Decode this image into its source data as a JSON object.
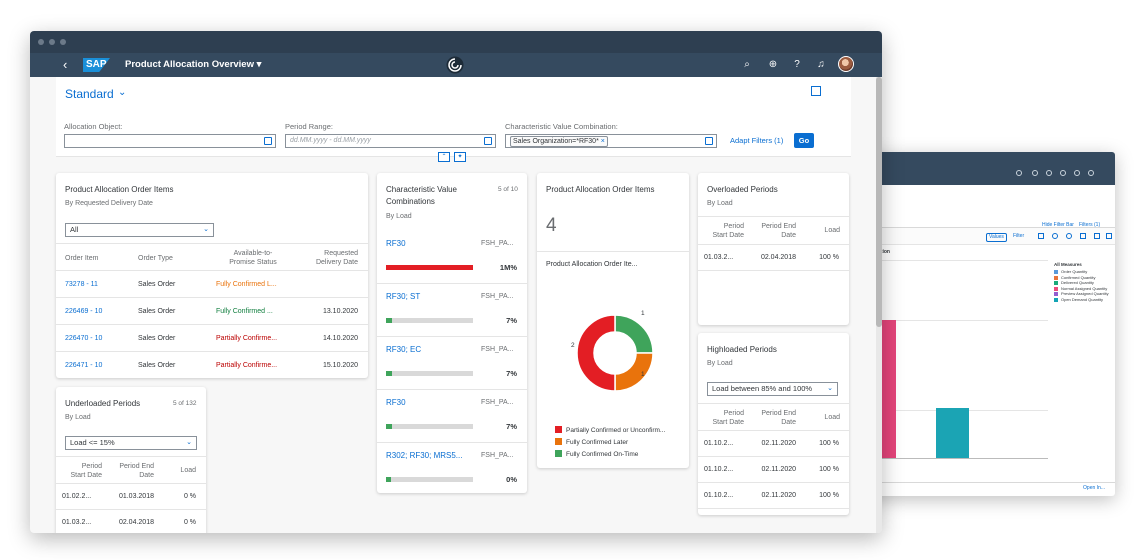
{
  "colors": {
    "shell": "#354a5f",
    "accent": "#0a6ed1",
    "red": "#e31e24",
    "orange": "#e9730c",
    "green": "#3fa45b",
    "pink": "#e5457b",
    "teal": "#1ba4b4"
  },
  "shell": {
    "title": "Product Allocation Overview ▾",
    "logo": "SAP",
    "icons": [
      "back-icon",
      "search-icon",
      "settings-icon",
      "help-icon",
      "bell-icon",
      "user-avatar"
    ]
  },
  "filterbar": {
    "variant": "Standard",
    "allocation_object_label": "Allocation Object:",
    "allocation_object_value": "",
    "period_range_label": "Period Range:",
    "period_range_placeholder": "dd.MM.yyyy - dd.MM.yyyy",
    "char_value_label": "Characteristic Value Combination:",
    "char_value_token": "Sales Organization=*RF30*",
    "token_remove": "×",
    "adapt_filters": "Adapt Filters (1)",
    "go": "Go"
  },
  "order_items": {
    "title": "Product Allocation Order Items",
    "subtitle": "By Requested Delivery Date",
    "select": "All",
    "headers": [
      "Order Item",
      "Order Type",
      "Available-to-\nPromise Status",
      "Requested\nDelivery Date"
    ],
    "rows": [
      {
        "item": "73278 - 11",
        "type": "Sales Order",
        "status": "Fully Confirmed L...",
        "date": ""
      },
      {
        "item": "226469 - 10",
        "type": "Sales Order",
        "status": "Fully Confirmed ...",
        "date": "13.10.2020"
      },
      {
        "item": "226470 - 10",
        "type": "Sales Order",
        "status": "Partially Confirme...",
        "date": "14.10.2020"
      },
      {
        "item": "226471 - 10",
        "type": "Sales Order",
        "status": "Partially Confirme...",
        "date": "15.10.2020"
      }
    ]
  },
  "underloaded": {
    "title": "Underloaded Periods",
    "count": "5 of 132",
    "subtitle": "By Load",
    "select": "Load <= 15%",
    "headers": [
      "Period\nStart Date",
      "Period End\nDate",
      "Load"
    ],
    "rows": [
      {
        "start": "01.02.2...",
        "end": "01.03.2018",
        "load": "0 %"
      },
      {
        "start": "01.03.2...",
        "end": "02.04.2018",
        "load": "0 %"
      }
    ]
  },
  "char_values": {
    "title": "Characteristic Value Combinations",
    "count": "5 of 10",
    "subtitle": "By Load",
    "rows": [
      {
        "name": "RF30",
        "code": "FSH_PA...",
        "pct_label": "1M%",
        "fill": 1.0,
        "color": "red"
      },
      {
        "name": "RF30; ST",
        "code": "FSH_PA...",
        "pct_label": "7%",
        "fill": 0.07,
        "color": "green"
      },
      {
        "name": "RF30; EC",
        "code": "FSH_PA...",
        "pct_label": "7%",
        "fill": 0.07,
        "color": "green"
      },
      {
        "name": "RF30",
        "code": "FSH_PA...",
        "pct_label": "7%",
        "fill": 0.07,
        "color": "green"
      },
      {
        "name": "R302; RF30; MRS5...",
        "code": "FSH_PA...",
        "pct_label": "0%",
        "fill": 0.0,
        "color": "green"
      }
    ]
  },
  "order_items_kpi": {
    "title": "Product Allocation Order Items",
    "value": "4",
    "chart_title": "Product Allocation Order Ite...",
    "chart_data": {
      "type": "pie",
      "categories": [
        "Partially Confirmed or Unconfirm...",
        "Fully Confirmed Later",
        "Fully Confirmed On-Time"
      ],
      "values": [
        2,
        1,
        1
      ],
      "colors": [
        "#e31e24",
        "#e9730c",
        "#3fa45b"
      ]
    },
    "legend": [
      "Partially Confirmed or Unconfirm...",
      "Fully Confirmed Later",
      "Fully Confirmed On-Time"
    ],
    "labels": [
      "2",
      "1",
      "1"
    ]
  },
  "overloaded": {
    "title": "Overloaded Periods",
    "subtitle": "By Load",
    "headers": [
      "Period\nStart Date",
      "Period End\nDate",
      "Load"
    ],
    "rows": [
      {
        "start": "01.03.2...",
        "end": "02.04.2018",
        "load": "100 %"
      }
    ]
  },
  "highloaded": {
    "title": "Highloaded Periods",
    "subtitle": "By Load",
    "select": "Load between 85% and 100%",
    "headers": [
      "Period\nStart Date",
      "Period End\nDate",
      "Load"
    ],
    "rows": [
      {
        "start": "01.10.2...",
        "end": "02.11.2020",
        "load": "100 %"
      },
      {
        "start": "01.10.2...",
        "end": "02.11.2020",
        "load": "100 %"
      },
      {
        "start": "01.10.2...",
        "end": "02.11.2020",
        "load": "100 %"
      }
    ]
  },
  "back_window": {
    "hide_filter_bar": "Hide Filter Bar",
    "filters": "Filters (1)",
    "values_btn": "Values",
    "filter_btn": "Filter",
    "chart_title": "ation",
    "legend_title": "All Measures",
    "legend": [
      {
        "name": "Order Quantity",
        "color": "#5899da"
      },
      {
        "name": "Confirmed Quantity",
        "color": "#e8743b"
      },
      {
        "name": "Delivered Quantity",
        "color": "#19a979"
      },
      {
        "name": "Normal Assigned Quantity",
        "color": "#ed4a7b"
      },
      {
        "name": "Preview Assigned Quantity",
        "color": "#945ecf"
      },
      {
        "name": "Open Demand Quantity",
        "color": "#13a4b4"
      }
    ],
    "open_in": "Open In..."
  }
}
